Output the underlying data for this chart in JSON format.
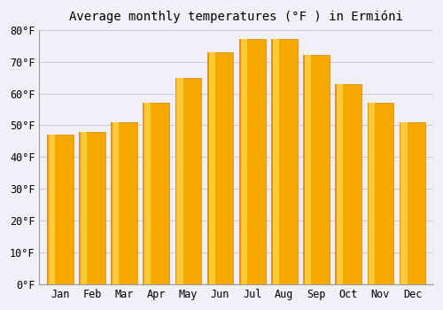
{
  "title": "Average monthly temperatures (°F ) in Ermióni",
  "months": [
    "Jan",
    "Feb",
    "Mar",
    "Apr",
    "May",
    "Jun",
    "Jul",
    "Aug",
    "Sep",
    "Oct",
    "Nov",
    "Dec"
  ],
  "values": [
    47,
    48,
    51,
    57,
    65,
    73,
    77,
    77,
    72,
    63,
    57,
    51
  ],
  "bar_color_left": "#E8920A",
  "bar_color_mid": "#FFCA3A",
  "bar_color_right": "#F5A800",
  "bar_edge_color": "#D4860A",
  "ylim": [
    0,
    80
  ],
  "yticks": [
    0,
    10,
    20,
    30,
    40,
    50,
    60,
    70,
    80
  ],
  "bg_color": "#F0F0F8",
  "plot_bg_color": "#F0F0F8",
  "grid_color": "#CCCCDD",
  "title_fontsize": 10,
  "tick_fontsize": 8.5,
  "bar_width": 0.82
}
